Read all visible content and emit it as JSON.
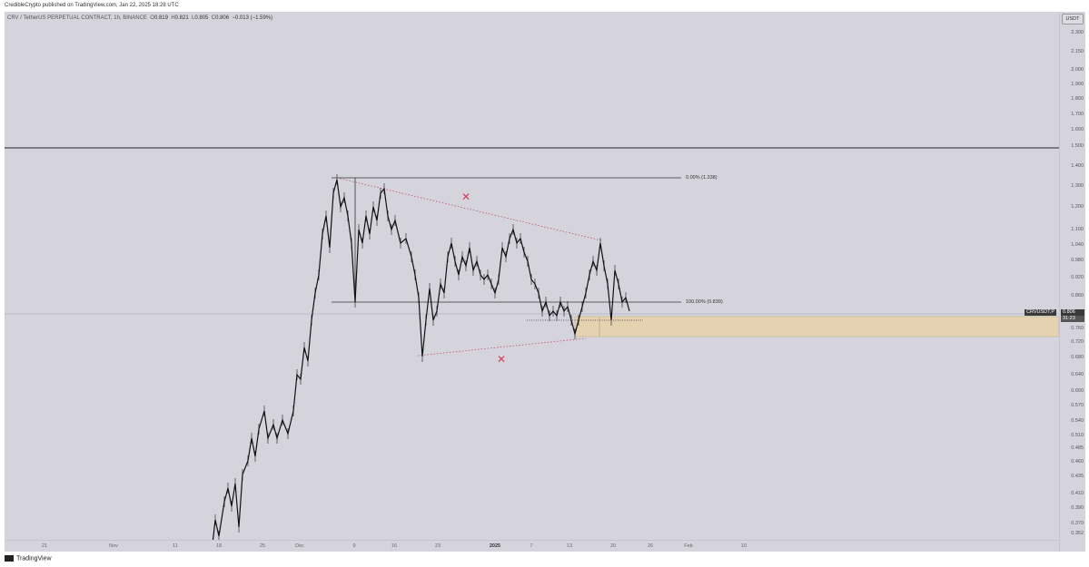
{
  "header": {
    "publisher": "CredibleCrypto published on TradingView.com, Jan 22, 2025 18:28 UTC"
  },
  "symbol": {
    "name": "CRV / TetherUS PERPETUAL CONTRACT, 1h, BINANCE",
    "o_label": "O",
    "o": "0.819",
    "h_label": "H",
    "h": "0.821",
    "l_label": "L",
    "l": "0.805",
    "c_label": "C",
    "c": "0.806",
    "change": "−0.013 (−1.59%)"
  },
  "price_scale": {
    "currency": "USDT",
    "ticks": [
      "2.300",
      "2.150",
      "2.000",
      "1.900",
      "1.800",
      "1.700",
      "1.600",
      "1.500",
      "1.400",
      "1.300",
      "1.200",
      "1.100",
      "1.040",
      "0.980",
      "0.920",
      "0.860",
      "0.800",
      "0.760",
      "0.720",
      "0.680",
      "0.640",
      "0.600",
      "0.570",
      "0.540",
      "0.510",
      "0.485",
      "0.460",
      "0.435",
      "0.410",
      "0.390",
      "0.370",
      "0.352"
    ],
    "current_symbol": "CRVUSDT.P",
    "current_price": "0.806",
    "countdown": "31:23"
  },
  "time_axis": {
    "labels": [
      "21",
      "Nov",
      "11",
      "18",
      "25",
      "Dec",
      "9",
      "16",
      "23",
      "2025",
      "7",
      "13",
      "20",
      "26",
      "Feb",
      "10"
    ],
    "bold_label": "2025"
  },
  "drawings": {
    "fib_top": "0.00% (1.338)",
    "fib_bottom": "100.00% (0.839)"
  },
  "colors": {
    "background": "#d5d4dd",
    "candle": "#111111",
    "trendline": "#c0506e",
    "zone_fill": "#e4d2b0",
    "horizontal_line": "#1f2430"
  },
  "footer": {
    "brand": "TradingView"
  }
}
